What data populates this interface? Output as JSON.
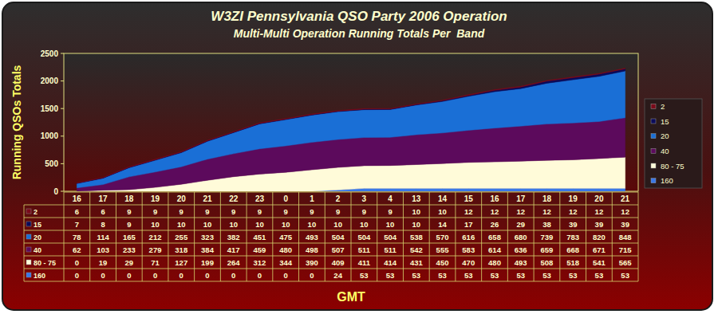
{
  "chart_data": {
    "type": "area",
    "title": "W3ZI Pennsylvania QSO Party 2006 Operation",
    "subtitle": "Multi-Multi Operation Running Totals Per  Band",
    "x_label": "GMT",
    "y_label": "Running QSOs Totals",
    "categories": [
      "16",
      "17",
      "18",
      "19",
      "20",
      "21",
      "22",
      "23",
      "0",
      "1",
      "2",
      "3",
      "4",
      "13",
      "14",
      "15",
      "16",
      "17",
      "18",
      "19",
      "20",
      "21"
    ],
    "series": [
      {
        "name": "2",
        "color": "#7a0a1a",
        "values": [
          6,
          6,
          9,
          9,
          9,
          9,
          9,
          9,
          9,
          9,
          9,
          9,
          9,
          10,
          10,
          12,
          12,
          12,
          12,
          12,
          12,
          12
        ]
      },
      {
        "name": "15",
        "color": "#0a0a5a",
        "values": [
          7,
          8,
          9,
          10,
          10,
          10,
          10,
          10,
          10,
          10,
          10,
          10,
          10,
          10,
          14,
          17,
          26,
          29,
          38,
          39,
          39,
          39
        ]
      },
      {
        "name": "20",
        "color": "#1a6fd6",
        "values": [
          78,
          114,
          165,
          212,
          255,
          323,
          382,
          451,
          475,
          493,
          504,
          504,
          504,
          538,
          570,
          616,
          658,
          680,
          739,
          783,
          820,
          848
        ]
      },
      {
        "name": "40",
        "color": "#5c0a5c",
        "values": [
          62,
          103,
          233,
          279,
          318,
          384,
          417,
          459,
          480,
          498,
          507,
          511,
          511,
          542,
          555,
          583,
          614,
          636,
          659,
          668,
          671,
          715
        ]
      },
      {
        "name": "80 - 75",
        "color": "#fffbd9",
        "values": [
          0,
          19,
          29,
          71,
          127,
          199,
          264,
          312,
          344,
          390,
          409,
          411,
          414,
          431,
          450,
          470,
          480,
          493,
          508,
          518,
          541,
          565
        ]
      },
      {
        "name": "160",
        "color": "#3a78e8",
        "values": [
          0,
          0,
          0,
          0,
          0,
          0,
          0,
          0,
          0,
          0,
          24,
          53,
          53,
          53,
          53,
          53,
          53,
          53,
          53,
          53,
          53,
          53
        ]
      }
    ],
    "stacked": true,
    "ylim": [
      0,
      2500
    ],
    "yticks": [
      0,
      500,
      1000,
      1500,
      2000,
      2500
    ],
    "grid": false,
    "legend": "right"
  }
}
